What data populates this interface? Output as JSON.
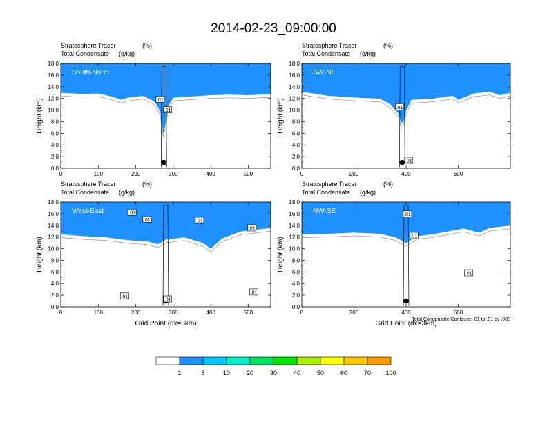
{
  "title": "2014-02-23_09:00:00",
  "chart_data": [
    {
      "type": "heatmap",
      "panel": "South-North",
      "label_left_1": "Stratosphere Tracer",
      "label_unit_1": "(%)",
      "label_left_2": "Total Condensate",
      "label_unit_2": "(g/kg)",
      "ylabel": "Height (km)",
      "xlabel": "",
      "xlim": [
        0,
        560
      ],
      "ylim": [
        0,
        18
      ],
      "xticks": [
        0,
        100,
        200,
        300,
        400,
        500
      ],
      "yticks": [
        0,
        2,
        4,
        6,
        8,
        10,
        12,
        14,
        16,
        18
      ],
      "tropopause_km": [
        [
          0,
          14.0
        ],
        [
          60,
          13.8
        ],
        [
          100,
          13.9
        ],
        [
          140,
          13.3
        ],
        [
          160,
          12.8
        ],
        [
          180,
          13.2
        ],
        [
          220,
          13.5
        ],
        [
          250,
          12.5
        ],
        [
          265,
          11.0
        ],
        [
          275,
          6.0
        ],
        [
          285,
          11.5
        ],
        [
          300,
          13.2
        ],
        [
          350,
          13.4
        ],
        [
          400,
          13.6
        ],
        [
          450,
          13.7
        ],
        [
          500,
          13.6
        ],
        [
          560,
          13.8
        ]
      ],
      "contour_labels": [
        {
          "x": 265,
          "y": 11.8,
          "text": ".01"
        },
        {
          "x": 285,
          "y": 10.0,
          "text": ".01"
        }
      ],
      "marker": {
        "x": 275,
        "y": 1.0
      }
    },
    {
      "type": "heatmap",
      "panel": "SW-NE",
      "label_left_1": "Stratosphere Tracer",
      "label_unit_1": "(%)",
      "label_left_2": "Total Condensate",
      "label_unit_2": "(g/kg)",
      "ylabel": "Height (km)",
      "xlabel": "",
      "xlim": [
        0,
        800
      ],
      "ylim": [
        0,
        18
      ],
      "xticks": [
        0,
        200,
        400,
        600
      ],
      "yticks": [
        0,
        2,
        4,
        6,
        8,
        10,
        12,
        14,
        16,
        18
      ],
      "tropopause_km": [
        [
          0,
          14.2
        ],
        [
          100,
          13.5
        ],
        [
          200,
          13.2
        ],
        [
          300,
          13.0
        ],
        [
          340,
          12.0
        ],
        [
          370,
          10.5
        ],
        [
          385,
          8.0
        ],
        [
          400,
          11.0
        ],
        [
          420,
          12.8
        ],
        [
          500,
          13.0
        ],
        [
          580,
          13.5
        ],
        [
          600,
          12.8
        ],
        [
          660,
          13.9
        ],
        [
          720,
          14.2
        ],
        [
          760,
          13.6
        ],
        [
          800,
          14.0
        ]
      ],
      "contour_labels": [
        {
          "x": 375,
          "y": 10.5,
          "text": ".01"
        },
        {
          "x": 410,
          "y": 1.3,
          "text": ".01"
        }
      ],
      "marker": {
        "x": 385,
        "y": 1.0
      }
    },
    {
      "type": "heatmap",
      "panel": "West-East",
      "label_left_1": "Stratosphere Tracer",
      "label_unit_1": "(%)",
      "label_left_2": "Total Condensate",
      "label_unit_2": "(g/kg)",
      "ylabel": "Height (km)",
      "xlabel": "Grid Point (dx=3km)",
      "xlim": [
        0,
        560
      ],
      "ylim": [
        0,
        18
      ],
      "xticks": [
        0,
        100,
        200,
        300,
        400,
        500
      ],
      "yticks": [
        0,
        2,
        4,
        6,
        8,
        10,
        12,
        14,
        16,
        18
      ],
      "tropopause_km": [
        [
          0,
          13.5
        ],
        [
          60,
          13.2
        ],
        [
          120,
          13.0
        ],
        [
          180,
          12.5
        ],
        [
          230,
          12.3
        ],
        [
          260,
          11.8
        ],
        [
          280,
          12.6
        ],
        [
          330,
          13.0
        ],
        [
          380,
          12.0
        ],
        [
          400,
          11.0
        ],
        [
          430,
          12.8
        ],
        [
          480,
          14.0
        ],
        [
          560,
          14.6
        ]
      ],
      "contour_labels": [
        {
          "x": 190,
          "y": 16.2,
          "text": ".01"
        },
        {
          "x": 230,
          "y": 15.0,
          "text": ".01"
        },
        {
          "x": 370,
          "y": 14.8,
          "text": ".01"
        },
        {
          "x": 510,
          "y": 13.5,
          "text": ".01"
        },
        {
          "x": 170,
          "y": 1.8,
          "text": ".01"
        },
        {
          "x": 285,
          "y": 1.3,
          "text": ".01"
        },
        {
          "x": 515,
          "y": 2.5,
          "text": ".01"
        }
      ],
      "marker": {
        "x": 280,
        "y": 1.0
      }
    },
    {
      "type": "heatmap",
      "panel": "NW-SE",
      "label_left_1": "Stratosphere Tracer",
      "label_unit_1": "(%)",
      "label_left_2": "Total Condensate",
      "label_unit_2": "(g/kg)",
      "ylabel": "Height (km)",
      "xlabel": "Grid Point (dx=3km)",
      "contour_note": "Total Condensate Contours: .01 to .01 by .000",
      "xlim": [
        0,
        800
      ],
      "ylim": [
        0,
        18
      ],
      "xticks": [
        0,
        200,
        400,
        600
      ],
      "yticks": [
        0,
        2,
        4,
        6,
        8,
        10,
        12,
        14,
        16,
        18
      ],
      "tropopause_km": [
        [
          0,
          13.5
        ],
        [
          100,
          13.6
        ],
        [
          200,
          13.8
        ],
        [
          300,
          13.6
        ],
        [
          360,
          13.0
        ],
        [
          400,
          12.0
        ],
        [
          440,
          13.2
        ],
        [
          500,
          13.5
        ],
        [
          560,
          14.0
        ],
        [
          620,
          14.5
        ],
        [
          680,
          13.8
        ],
        [
          720,
          14.6
        ],
        [
          800,
          15.0
        ]
      ],
      "contour_labels": [
        {
          "x": 405,
          "y": 15.9,
          "text": ".01"
        },
        {
          "x": 430,
          "y": 12.2,
          "text": ".01"
        },
        {
          "x": 640,
          "y": 5.8,
          "text": ".01"
        }
      ],
      "marker": {
        "x": 400,
        "y": 1.0
      }
    }
  ],
  "colorbar": {
    "levels": [
      "1",
      "5",
      "10",
      "20",
      "30",
      "40",
      "50",
      "60",
      "70",
      "100"
    ],
    "colors": [
      "#ffffff",
      "#1e90ff",
      "#00c8ff",
      "#00f0c8",
      "#00e664",
      "#00e600",
      "#aaf000",
      "#ffff00",
      "#ffc800",
      "#ff9b00",
      "#ff6400",
      "#ff1e00"
    ]
  }
}
